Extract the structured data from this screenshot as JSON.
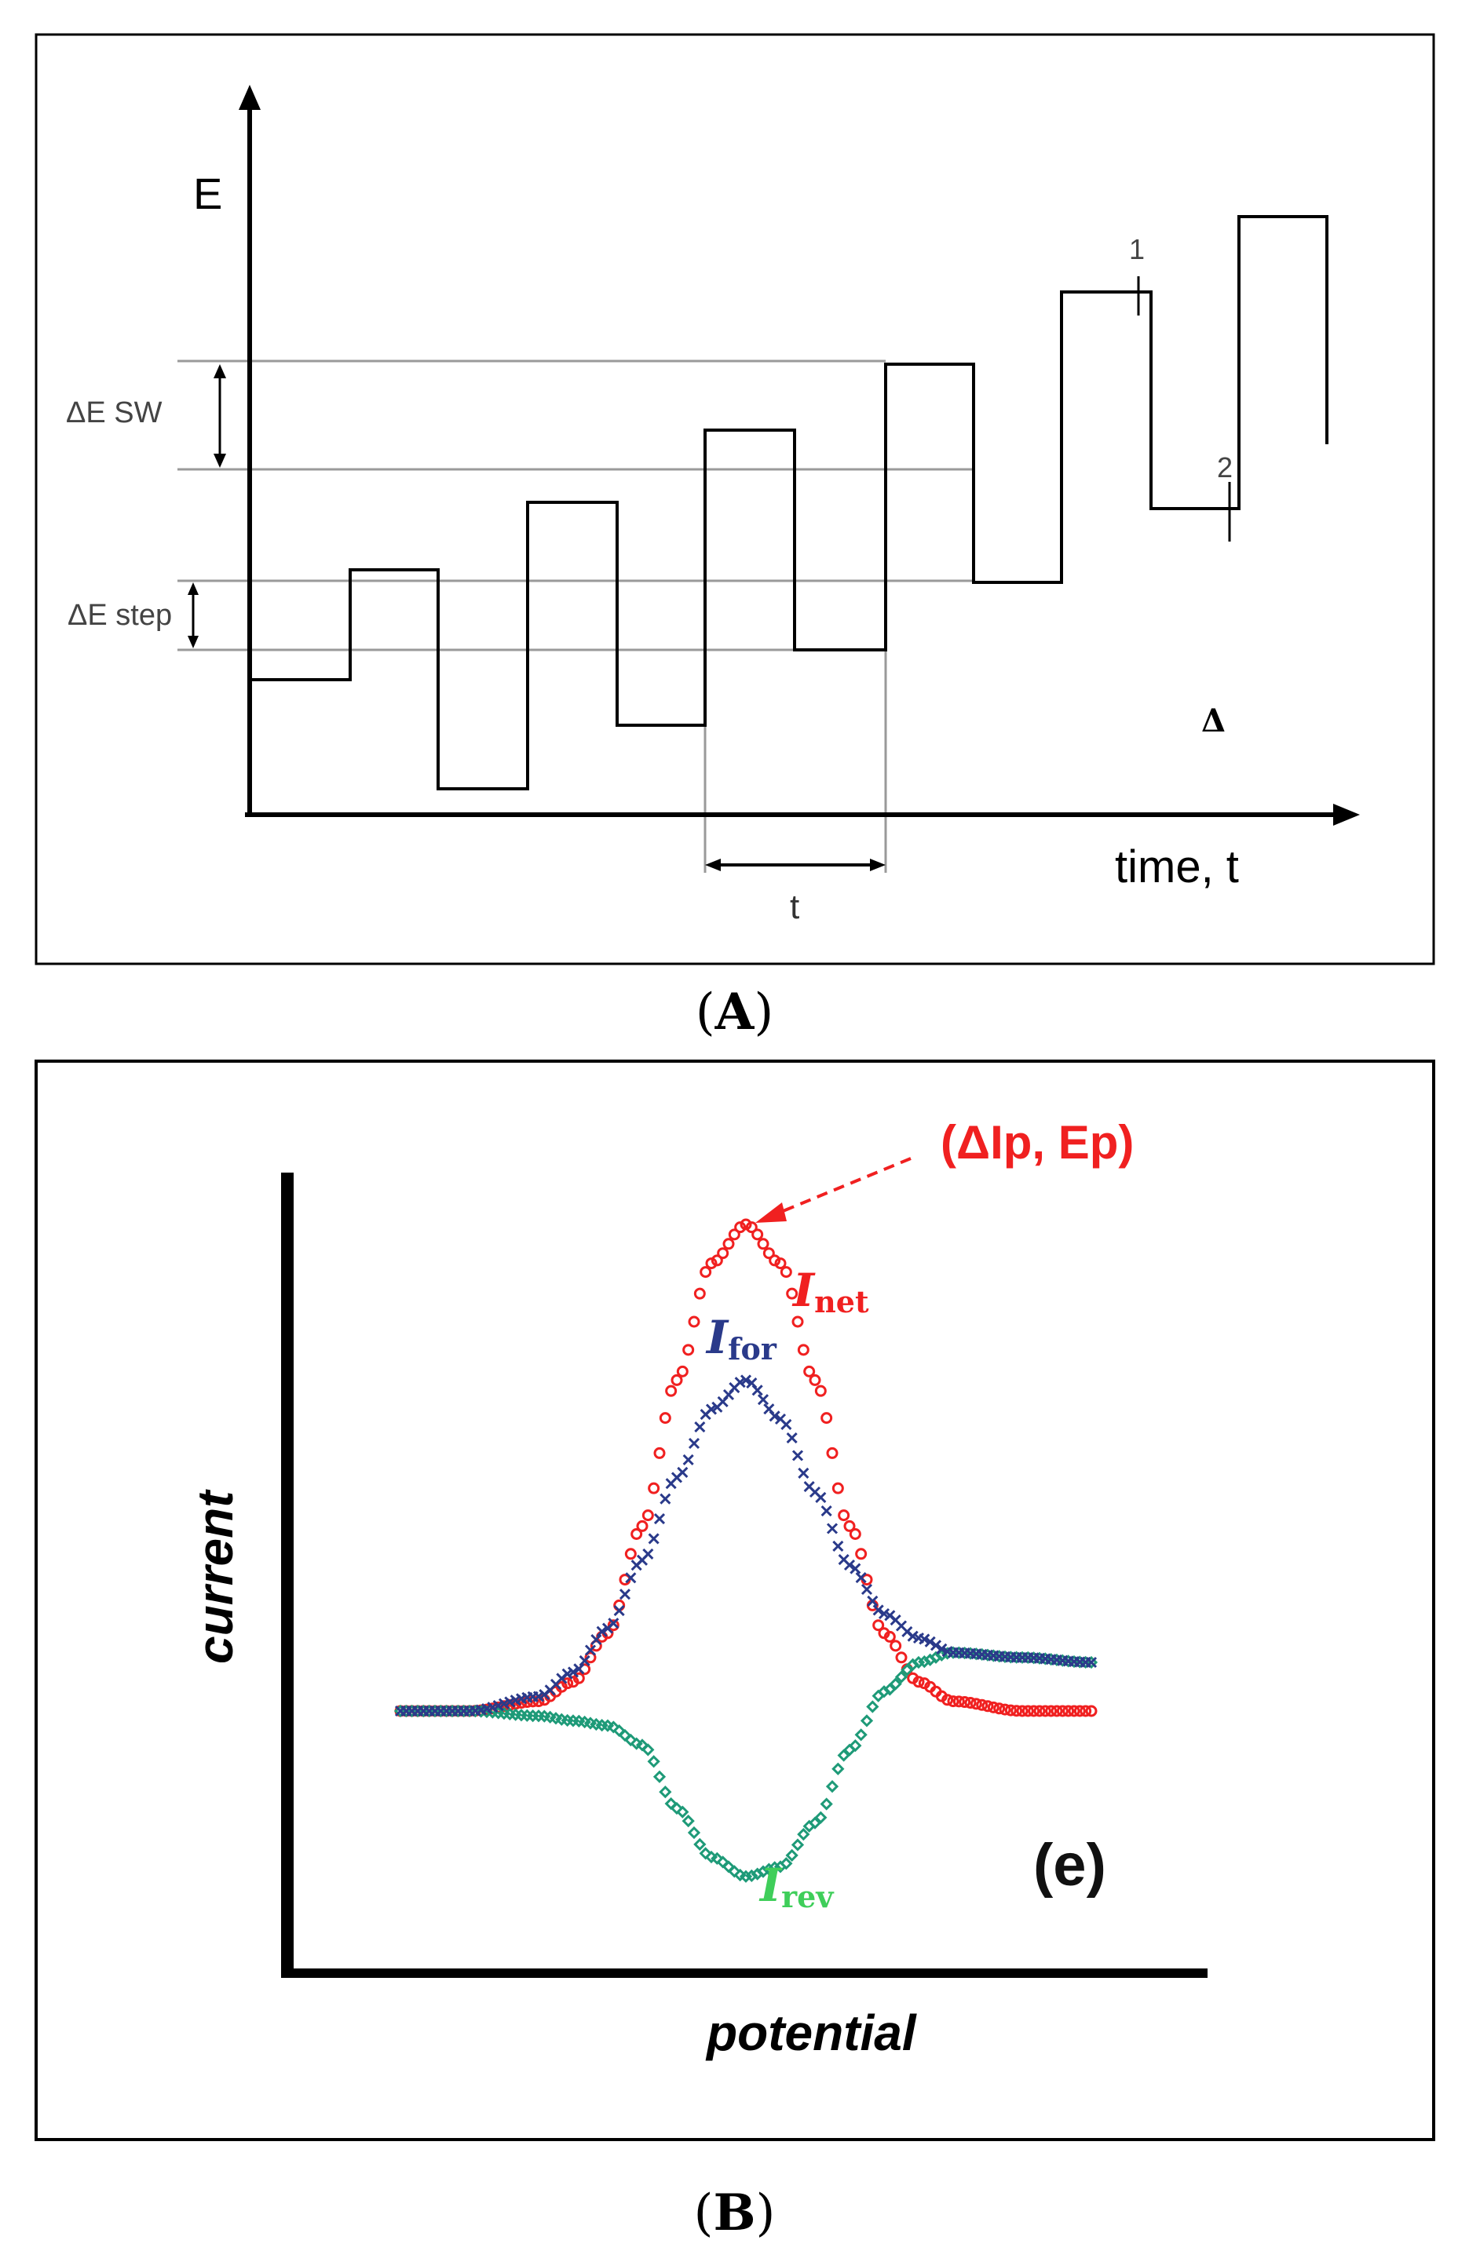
{
  "panel_a": {
    "caption_letter": "A",
    "y_axis_label": "E",
    "x_axis_label": "time, t",
    "delta_e_sw_label": "ΔE SW",
    "delta_e_step_label": "ΔE step",
    "period_label": "t",
    "marker_1": "1",
    "marker_2": "2",
    "corner_symbol": "Δ",
    "waveform": {
      "description_note": "square-wave superimposed on staircase",
      "levels": [
        0,
        1.5,
        -1.5,
        2.5,
        -0.5,
        3.5,
        0.5,
        4.5,
        1.5,
        5.5,
        2.5,
        6.5
      ],
      "periods": 6
    }
  },
  "panel_b": {
    "caption_letter": "B",
    "y_axis_label": "current",
    "x_axis_label": "potential",
    "peak_label": "(ΔIp,  Ep)",
    "panel_tag": "(e)",
    "labels": {
      "net": {
        "main": "I",
        "sub": "net"
      },
      "for": {
        "main": "I",
        "sub": "for"
      },
      "rev": {
        "main": "I",
        "sub": "rev"
      }
    },
    "colors": {
      "net": "#f02020",
      "for": "#2a3a8a",
      "rev": "#1e9a78"
    }
  },
  "chart_data": {
    "type": "line",
    "title": "",
    "xlabel": "potential",
    "ylabel": "current",
    "x": [
      -1.0,
      -0.8,
      -0.6,
      -0.5,
      -0.4,
      -0.3,
      -0.2,
      -0.1,
      0.0,
      0.1,
      0.2,
      0.3,
      0.4,
      0.5,
      0.6,
      0.8,
      1.0
    ],
    "series": [
      {
        "name": "I_net",
        "values": [
          0.0,
          0.0,
          0.02,
          0.06,
          0.16,
          0.38,
          0.68,
          0.92,
          1.0,
          0.92,
          0.68,
          0.38,
          0.16,
          0.06,
          0.02,
          0.0,
          0.0
        ]
      },
      {
        "name": "I_for",
        "values": [
          0.0,
          0.0,
          0.03,
          0.08,
          0.17,
          0.31,
          0.48,
          0.62,
          0.68,
          0.6,
          0.45,
          0.3,
          0.2,
          0.15,
          0.12,
          0.11,
          0.1
        ]
      },
      {
        "name": "I_rev",
        "values": [
          0.0,
          0.0,
          -0.01,
          -0.02,
          -0.03,
          -0.07,
          -0.2,
          -0.3,
          -0.34,
          -0.32,
          -0.23,
          -0.08,
          0.04,
          0.1,
          0.12,
          0.11,
          0.1
        ]
      }
    ]
  }
}
